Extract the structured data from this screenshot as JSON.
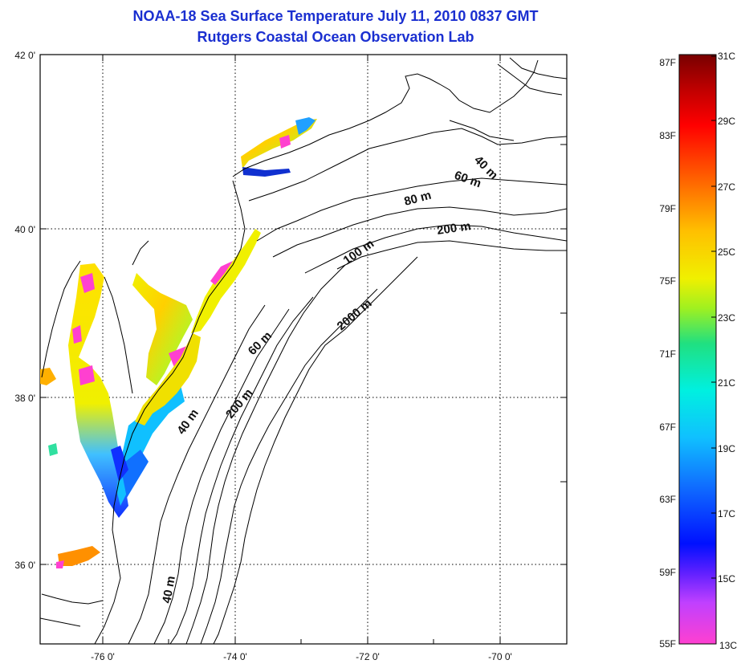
{
  "title": {
    "line1": "NOAA-18 Sea Surface Temperature July 11, 2010 0837 GMT",
    "line2": "Rutgers Coastal Ocean Observation Lab"
  },
  "axes": {
    "lat_labels": [
      "42 0'",
      "40 0'",
      "38 0'",
      "36 0'"
    ],
    "lon_labels": [
      "-76 0'",
      "-74 0'",
      "-72 0'",
      "-70 0'"
    ]
  },
  "contours": {
    "labels": [
      "40 m",
      "60 m",
      "80 m",
      "200 m",
      "100 m",
      "2000 m",
      "60 m",
      "200 m",
      "40 m",
      "40 m"
    ]
  },
  "colorbar": {
    "fahrenheit_labels": [
      "87F",
      "83F",
      "79F",
      "75F",
      "71F",
      "67F",
      "63F",
      "59F",
      "55F"
    ],
    "celsius_labels": [
      "31C",
      "29C",
      "27C",
      "25C",
      "23C",
      "21C",
      "19C",
      "17C",
      "15C",
      "13C"
    ]
  },
  "colors": {
    "title": "#1a2fd0",
    "land_line": "#000000",
    "grid": "#000000"
  }
}
